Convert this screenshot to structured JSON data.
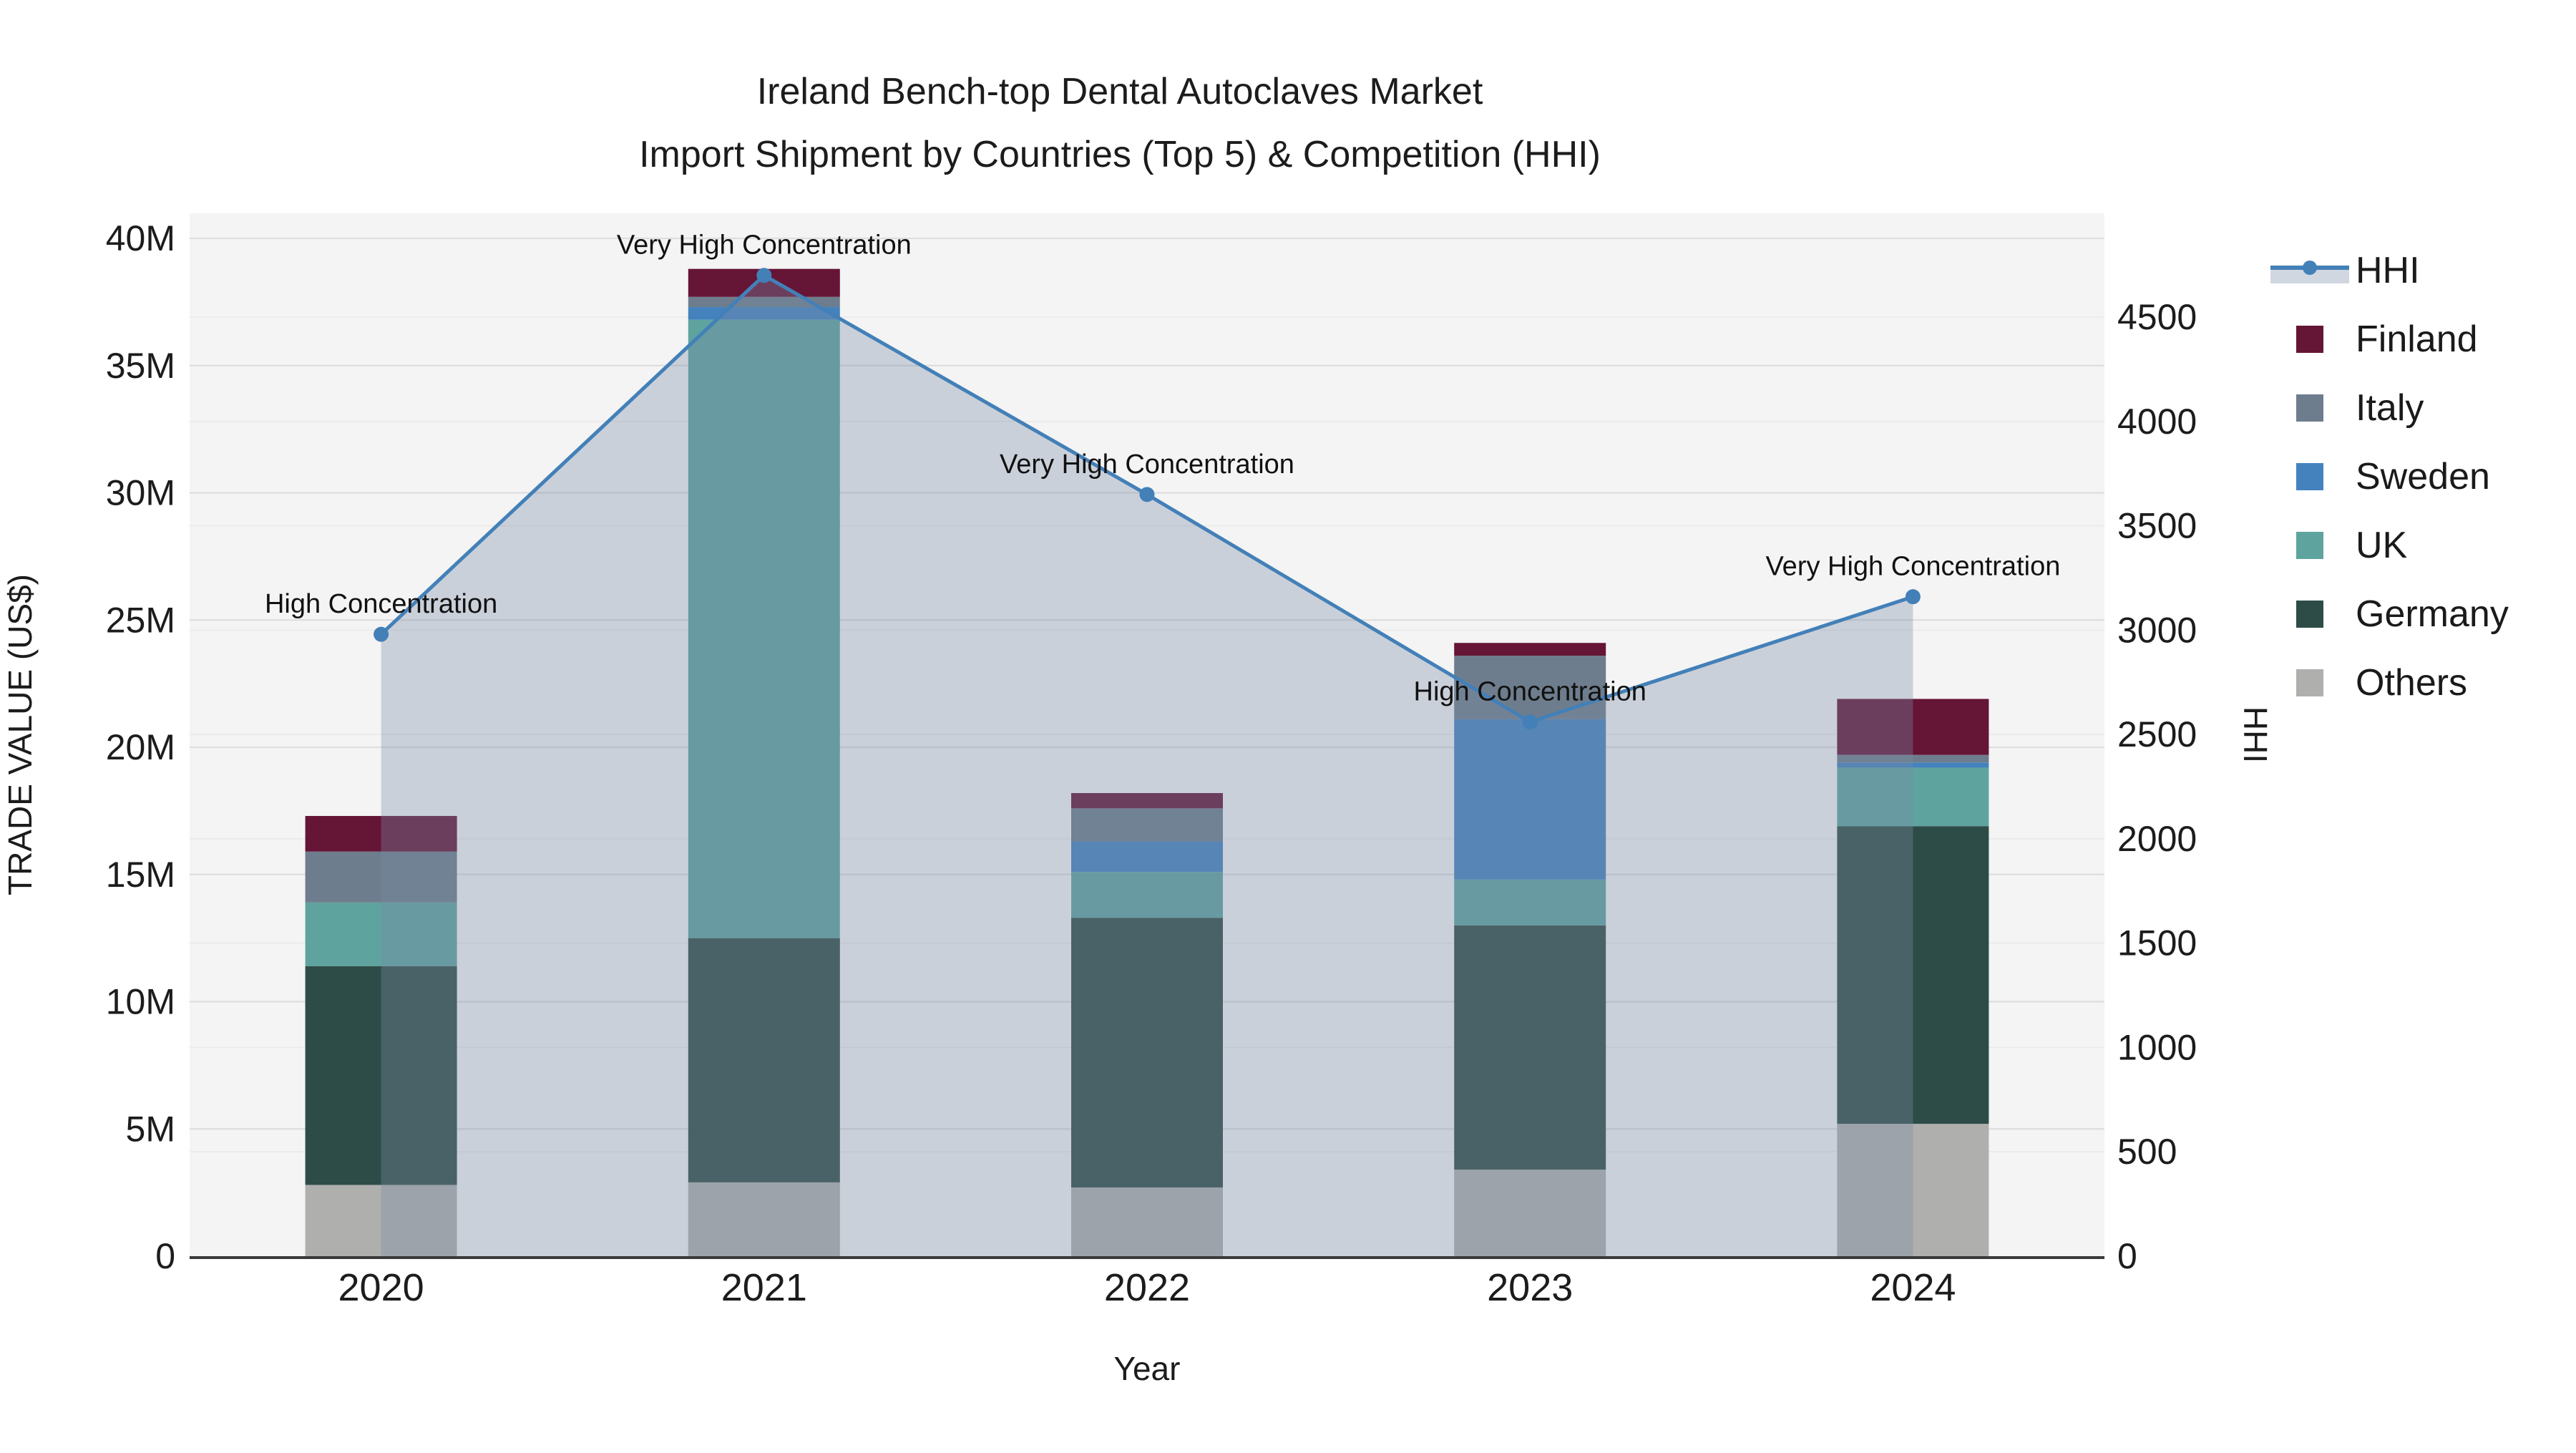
{
  "title": {
    "line1": "Ireland Bench-top Dental Autoclaves Market",
    "line2": "Import Shipment by Countries (Top 5) & Competition (HHI)"
  },
  "axes": {
    "x": {
      "title": "Year",
      "tick_labels": [
        "2020",
        "2021",
        "2022",
        "2023",
        "2024"
      ]
    },
    "y_left": {
      "title": "TRADE VALUE (US$)",
      "tick_labels": [
        "0",
        "5M",
        "10M",
        "15M",
        "20M",
        "25M",
        "30M",
        "35M",
        "40M"
      ],
      "range_millions": [
        0,
        40
      ]
    },
    "y_right": {
      "title": "HHI",
      "tick_labels": [
        "0",
        "500",
        "1000",
        "1500",
        "2000",
        "2500",
        "3000",
        "3500",
        "4000",
        "4500"
      ],
      "range": [
        0,
        4950
      ]
    }
  },
  "legend": [
    {
      "label": "HHI",
      "type": "line"
    },
    {
      "label": "Finland",
      "type": "swatch",
      "color": "#651536"
    },
    {
      "label": "Italy",
      "type": "swatch",
      "color": "#6E7D8D"
    },
    {
      "label": "Sweden",
      "type": "swatch",
      "color": "#4482BD"
    },
    {
      "label": "UK",
      "type": "swatch",
      "color": "#5FA39F"
    },
    {
      "label": "Germany",
      "type": "swatch",
      "color": "#2E4C47"
    },
    {
      "label": "Others",
      "type": "swatch",
      "color": "#AFAFAD"
    }
  ],
  "colors": {
    "plot_bg": "#F4F4F4",
    "grid_major": "#DEDEDE",
    "grid_minor": "#E9E9E9",
    "axis_line": "#3A3A3A",
    "text": "#1C1C1C",
    "hhi_line": "#4380B8",
    "hhi_fill": "rgba(122,140,166,0.35)"
  },
  "chart_data": {
    "type": "stacked-bar + line (dual axis)",
    "categories": [
      "2020",
      "2021",
      "2022",
      "2023",
      "2024"
    ],
    "bar_value_unit": "million US$",
    "bar_series_bottom_to_top": [
      {
        "name": "Others",
        "color": "#AFAFAD",
        "values": [
          2.8,
          2.9,
          2.7,
          3.4,
          5.2
        ]
      },
      {
        "name": "Germany",
        "color": "#2E4C47",
        "values": [
          8.6,
          9.6,
          10.6,
          9.6,
          11.7
        ]
      },
      {
        "name": "UK",
        "color": "#5FA39F",
        "values": [
          2.5,
          24.3,
          1.8,
          1.8,
          2.3
        ]
      },
      {
        "name": "Sweden",
        "color": "#4482BD",
        "values": [
          0.0,
          0.5,
          1.2,
          6.3,
          0.2
        ]
      },
      {
        "name": "Italy",
        "color": "#6E7D8D",
        "values": [
          2.0,
          0.4,
          1.3,
          2.5,
          0.3
        ]
      },
      {
        "name": "Finland",
        "color": "#651536",
        "values": [
          1.4,
          1.1,
          0.6,
          0.5,
          2.2
        ]
      }
    ],
    "bar_totals_millions": [
      17.3,
      38.8,
      18.2,
      24.1,
      21.9
    ],
    "line_series": {
      "name": "HHI",
      "values": [
        2980,
        4700,
        3650,
        2560,
        3160
      ],
      "area_fill_to_zero": true
    },
    "annotations": [
      "High Concentration",
      "Very High Concentration",
      "Very High Concentration",
      "High Concentration",
      "Very High Concentration"
    ],
    "ylabel_left": "TRADE VALUE (US$)",
    "ylabel_right": "HHI",
    "xlabel": "Year",
    "ylim_left_millions": [
      0,
      40
    ],
    "ylim_right": [
      0,
      4950
    ],
    "grid": true,
    "legend_position": "right"
  }
}
